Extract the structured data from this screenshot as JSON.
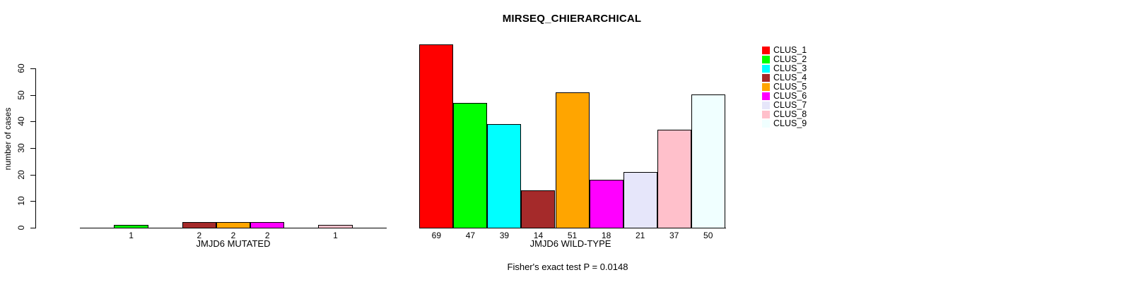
{
  "title": "MIRSEQ_CHIERARCHICAL",
  "y_axis": {
    "label": "number of cases",
    "ticks": [
      0,
      10,
      20,
      30,
      40,
      50,
      60
    ]
  },
  "legend": {
    "position": "top-right",
    "items": [
      {
        "label": "CLUS_1",
        "color": "#FF0000"
      },
      {
        "label": "CLUS_2",
        "color": "#00FF00"
      },
      {
        "label": "CLUS_3",
        "color": "#00FFFF"
      },
      {
        "label": "CLUS_4",
        "color": "#A52A2A"
      },
      {
        "label": "CLUS_5",
        "color": "#FFA500"
      },
      {
        "label": "CLUS_6",
        "color": "#FF00FF"
      },
      {
        "label": "CLUS_7",
        "color": "#E6E6FA"
      },
      {
        "label": "CLUS_8",
        "color": "#FFC0CB"
      },
      {
        "label": "CLUS_9",
        "color": "#F0FFFF"
      }
    ]
  },
  "footer": {
    "text": "Fisher's exact test P = 0.0148"
  },
  "chart_data": [
    {
      "type": "bar",
      "panel": "left",
      "title": "MIRSEQ_CHIERARCHICAL",
      "xlabel": "JMJD6 MUTATED",
      "ylabel": "number of cases",
      "ylim": [
        0,
        60
      ],
      "grid": false,
      "legend_position": "top-right",
      "categories": [
        "CLUS_1",
        "CLUS_2",
        "CLUS_3",
        "CLUS_4",
        "CLUS_5",
        "CLUS_6",
        "CLUS_7",
        "CLUS_8",
        "CLUS_9"
      ],
      "values": [
        0,
        1,
        0,
        2,
        2,
        2,
        0,
        1,
        0
      ],
      "bar_labels": [
        "",
        "1",
        "",
        "2",
        "2",
        "2",
        "",
        "1",
        ""
      ],
      "colors": [
        "#FF0000",
        "#00FF00",
        "#00FFFF",
        "#A52A2A",
        "#FFA500",
        "#FF00FF",
        "#E6E6FA",
        "#FFC0CB",
        "#F0FFFF"
      ]
    },
    {
      "type": "bar",
      "panel": "right",
      "xlabel": "JMJD6 WILD-TYPE",
      "ylabel": "number of cases",
      "ylim": [
        0,
        60
      ],
      "grid": false,
      "categories": [
        "CLUS_1",
        "CLUS_2",
        "CLUS_3",
        "CLUS_4",
        "CLUS_5",
        "CLUS_6",
        "CLUS_7",
        "CLUS_8",
        "CLUS_9"
      ],
      "values": [
        69,
        47,
        39,
        14,
        51,
        18,
        21,
        37,
        50
      ],
      "bar_labels": [
        "69",
        "47",
        "39",
        "14",
        "51",
        "18",
        "21",
        "37",
        "50"
      ],
      "colors": [
        "#FF0000",
        "#00FF00",
        "#00FFFF",
        "#A52A2A",
        "#FFA500",
        "#FF00FF",
        "#E6E6FA",
        "#FFC0CB",
        "#F0FFFF"
      ]
    }
  ]
}
